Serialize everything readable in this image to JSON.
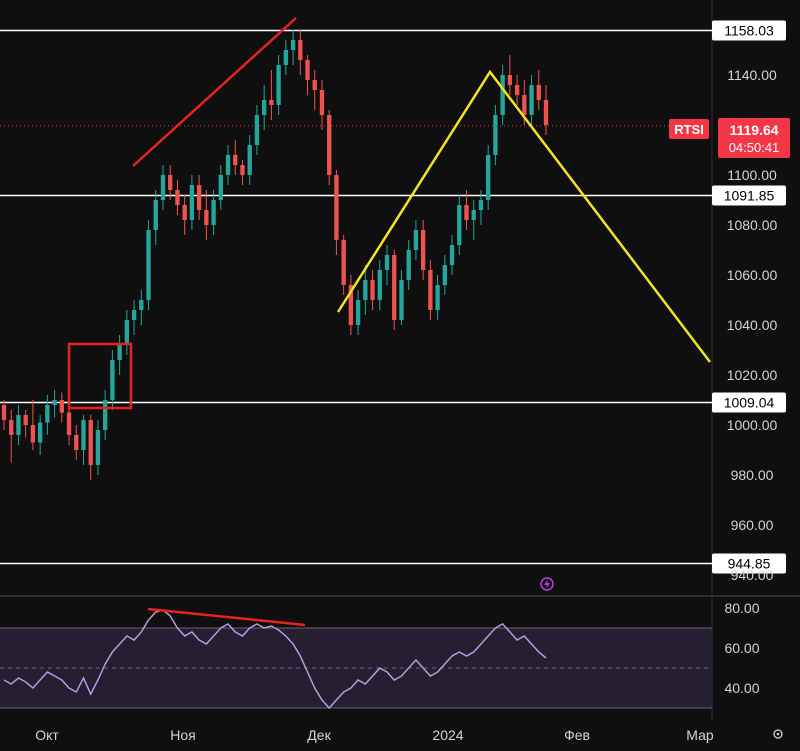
{
  "chart_data": {
    "type": "candlestick",
    "symbol_label": "RTSI",
    "last_price": "1119.64",
    "countdown": "04:50:41",
    "colors": {
      "background": "#0f0f0f",
      "up": "#26a69a",
      "down": "#ef5350",
      "price_tag": "#f23645",
      "annotation_red": "#e8221c",
      "annotation_yellow": "#f2e422",
      "rsi_line": "#b39ddb",
      "rsi_band": "#2a2238",
      "level_line": "#ffffff"
    },
    "price_axis": {
      "min": 934,
      "max": 1170,
      "ticks": [
        "1140.00",
        "1100.00",
        "1080.00",
        "1060.00",
        "1040.00",
        "1020.00",
        "1000.00",
        "980.00",
        "960.00",
        "940.00"
      ]
    },
    "x_axis_labels": [
      "Окт",
      "Ноя",
      "Дек",
      "2024",
      "Фев",
      "Мар"
    ],
    "levels": [
      {
        "value": 1158.03,
        "label": "1158.03"
      },
      {
        "value": 1091.85,
        "label": "1091.85"
      },
      {
        "value": 1009.04,
        "label": "1009.04"
      },
      {
        "value": 944.85,
        "label": "944.85"
      }
    ],
    "candles": [
      [
        1008,
        1010,
        998,
        1002
      ],
      [
        1002,
        1006,
        985,
        996
      ],
      [
        996,
        1008,
        992,
        1004
      ],
      [
        1004,
        1006,
        995,
        1000
      ],
      [
        1000,
        1010,
        990,
        993
      ],
      [
        993,
        1004,
        988,
        1001
      ],
      [
        1001,
        1012,
        996,
        1008
      ],
      [
        1008,
        1014,
        1003,
        1010
      ],
      [
        1010,
        1013,
        1001,
        1005
      ],
      [
        1005,
        1008,
        992,
        996
      ],
      [
        996,
        1000,
        986,
        990
      ],
      [
        990,
        1004,
        984,
        1002
      ],
      [
        1002,
        1004,
        978,
        984
      ],
      [
        984,
        1002,
        980,
        998
      ],
      [
        998,
        1014,
        994,
        1010
      ],
      [
        1010,
        1030,
        1006,
        1026
      ],
      [
        1026,
        1036,
        1020,
        1032
      ],
      [
        1032,
        1046,
        1028,
        1042
      ],
      [
        1042,
        1050,
        1036,
        1046
      ],
      [
        1046,
        1054,
        1040,
        1050
      ],
      [
        1050,
        1082,
        1046,
        1078
      ],
      [
        1078,
        1094,
        1072,
        1090
      ],
      [
        1090,
        1104,
        1086,
        1100
      ],
      [
        1100,
        1104,
        1090,
        1094
      ],
      [
        1094,
        1098,
        1084,
        1088
      ],
      [
        1088,
        1092,
        1076,
        1082
      ],
      [
        1082,
        1100,
        1078,
        1096
      ],
      [
        1096,
        1100,
        1082,
        1086
      ],
      [
        1086,
        1094,
        1074,
        1080
      ],
      [
        1080,
        1094,
        1076,
        1090
      ],
      [
        1090,
        1104,
        1086,
        1100
      ],
      [
        1100,
        1112,
        1096,
        1108
      ],
      [
        1108,
        1114,
        1100,
        1104
      ],
      [
        1104,
        1106,
        1096,
        1100
      ],
      [
        1100,
        1116,
        1096,
        1112
      ],
      [
        1112,
        1128,
        1108,
        1124
      ],
      [
        1124,
        1136,
        1118,
        1130
      ],
      [
        1130,
        1142,
        1122,
        1128
      ],
      [
        1128,
        1148,
        1124,
        1144
      ],
      [
        1144,
        1154,
        1140,
        1150
      ],
      [
        1150,
        1158,
        1144,
        1154
      ],
      [
        1154,
        1158,
        1140,
        1146
      ],
      [
        1146,
        1148,
        1132,
        1138
      ],
      [
        1138,
        1142,
        1126,
        1134
      ],
      [
        1134,
        1138,
        1118,
        1124
      ],
      [
        1124,
        1126,
        1096,
        1100
      ],
      [
        1100,
        1102,
        1068,
        1074
      ],
      [
        1074,
        1076,
        1052,
        1056
      ],
      [
        1056,
        1060,
        1036,
        1040
      ],
      [
        1040,
        1054,
        1036,
        1050
      ],
      [
        1050,
        1064,
        1044,
        1058
      ],
      [
        1058,
        1062,
        1046,
        1050
      ],
      [
        1050,
        1066,
        1046,
        1062
      ],
      [
        1062,
        1072,
        1056,
        1068
      ],
      [
        1068,
        1070,
        1038,
        1042
      ],
      [
        1042,
        1062,
        1040,
        1058
      ],
      [
        1058,
        1074,
        1054,
        1070
      ],
      [
        1070,
        1082,
        1066,
        1078
      ],
      [
        1078,
        1082,
        1058,
        1062
      ],
      [
        1062,
        1066,
        1042,
        1046
      ],
      [
        1046,
        1060,
        1042,
        1056
      ],
      [
        1056,
        1068,
        1052,
        1064
      ],
      [
        1064,
        1076,
        1060,
        1072
      ],
      [
        1072,
        1092,
        1068,
        1088
      ],
      [
        1088,
        1094,
        1078,
        1082
      ],
      [
        1082,
        1090,
        1074,
        1086
      ],
      [
        1086,
        1094,
        1080,
        1090
      ],
      [
        1090,
        1112,
        1086,
        1108
      ],
      [
        1108,
        1128,
        1104,
        1124
      ],
      [
        1124,
        1144,
        1120,
        1140
      ],
      [
        1140,
        1148,
        1132,
        1136
      ],
      [
        1136,
        1140,
        1128,
        1132
      ],
      [
        1132,
        1138,
        1120,
        1124
      ],
      [
        1124,
        1140,
        1120,
        1136
      ],
      [
        1136,
        1142,
        1126,
        1130
      ],
      [
        1130,
        1136,
        1116,
        1120
      ]
    ],
    "rsi": {
      "ticks": [
        "80.00",
        "60.00",
        "40.00"
      ],
      "band_upper": 70,
      "band_lower": 30,
      "min": 25,
      "max": 85,
      "values": [
        44,
        42,
        45,
        43,
        40,
        44,
        48,
        46,
        44,
        40,
        38,
        45,
        37,
        44,
        52,
        58,
        62,
        66,
        64,
        68,
        74,
        78,
        79,
        76,
        70,
        66,
        68,
        64,
        62,
        66,
        70,
        72,
        68,
        66,
        70,
        72,
        70,
        71,
        69,
        66,
        62,
        56,
        48,
        40,
        34,
        30,
        34,
        38,
        40,
        44,
        42,
        46,
        50,
        48,
        44,
        46,
        50,
        54,
        50,
        46,
        48,
        52,
        56,
        58,
        56,
        58,
        62,
        66,
        70,
        72,
        68,
        64,
        66,
        62,
        58,
        55
      ]
    }
  }
}
